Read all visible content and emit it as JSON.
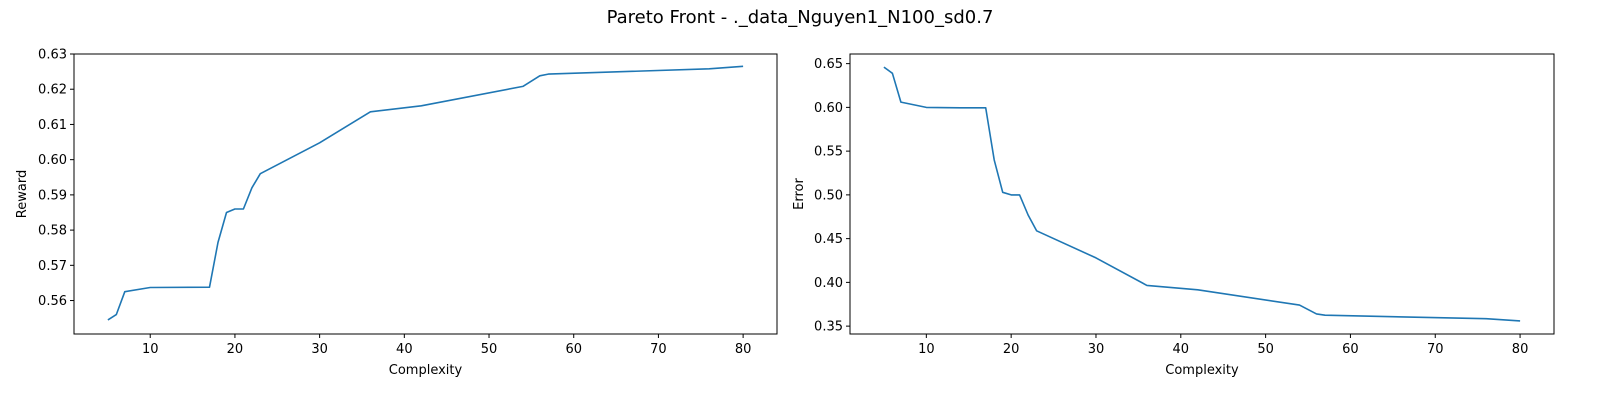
{
  "figure": {
    "title": "Pareto Front - ._data_Nguyen1_N100_sd0.7"
  },
  "chart_data": [
    {
      "type": "line",
      "xlabel": "Complexity",
      "ylabel": "Reward",
      "xlim": [
        1,
        84
      ],
      "ylim": [
        0.5505,
        0.63
      ],
      "xticks": [
        10,
        20,
        30,
        40,
        50,
        60,
        70,
        80
      ],
      "yticks": [
        0.56,
        0.57,
        0.58,
        0.59,
        0.6,
        0.61,
        0.62,
        0.63
      ],
      "ytick_labels": [
        "0.56",
        "0.57",
        "0.58",
        "0.59",
        "0.60",
        "0.61",
        "0.62",
        "0.63"
      ],
      "grid": false,
      "color": "#1f77b4",
      "x": [
        5,
        6,
        7,
        10,
        17,
        18,
        19,
        20,
        21,
        22,
        23,
        30,
        36,
        42,
        54,
        56,
        57,
        76,
        80
      ],
      "y": [
        0.5545,
        0.556,
        0.5625,
        0.5637,
        0.5638,
        0.5765,
        0.585,
        0.586,
        0.586,
        0.592,
        0.596,
        0.6048,
        0.6136,
        0.6153,
        0.6208,
        0.6238,
        0.6243,
        0.6258,
        0.6265
      ]
    },
    {
      "type": "line",
      "xlabel": "Complexity",
      "ylabel": "Error",
      "xlim": [
        1,
        84
      ],
      "ylim": [
        0.341,
        0.661
      ],
      "xticks": [
        10,
        20,
        30,
        40,
        50,
        60,
        70,
        80
      ],
      "yticks": [
        0.35,
        0.4,
        0.45,
        0.5,
        0.55,
        0.6,
        0.65
      ],
      "ytick_labels": [
        "0.35",
        "0.40",
        "0.45",
        "0.50",
        "0.55",
        "0.60",
        "0.65"
      ],
      "grid": false,
      "color": "#1f77b4",
      "x": [
        5,
        6,
        7,
        10,
        14,
        17,
        18,
        19,
        20,
        21,
        22,
        23,
        30,
        36,
        42,
        54,
        56,
        57,
        76,
        80
      ],
      "y": [
        0.646,
        0.639,
        0.606,
        0.6,
        0.5995,
        0.5995,
        0.54,
        0.503,
        0.5,
        0.5,
        0.477,
        0.459,
        0.428,
        0.3965,
        0.3915,
        0.374,
        0.364,
        0.3625,
        0.3585,
        0.356
      ]
    }
  ]
}
